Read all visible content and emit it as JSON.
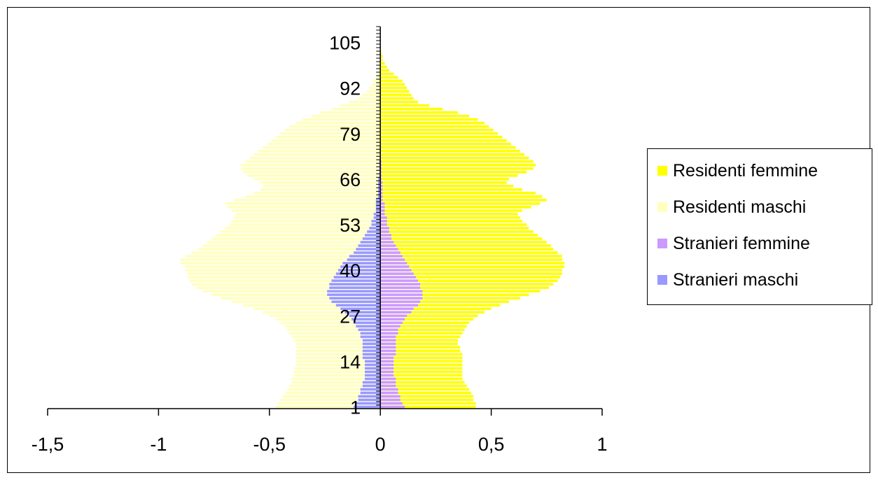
{
  "chart_data": {
    "type": "bar",
    "orientation": "horizontal",
    "stacking": "overlay",
    "xlim": [
      -1.5,
      1
    ],
    "x_ticks": [
      "-1,5",
      "-1",
      "-0,5",
      "0",
      "0,5",
      "1"
    ],
    "x_tick_values": [
      -1.5,
      -1,
      -0.5,
      0,
      0.5,
      1
    ],
    "ylim": [
      0,
      110
    ],
    "y_ticks": [
      "1",
      "14",
      "27",
      "40",
      "53",
      "66",
      "79",
      "92",
      "105"
    ],
    "y_tick_values": [
      1,
      14,
      27,
      40,
      53,
      66,
      79,
      92,
      105
    ],
    "grid": false,
    "legend_position": "right",
    "series": [
      {
        "name": "Residenti femmine",
        "color": "#ffff00",
        "values": [
          0.43,
          0.43,
          0.42,
          0.42,
          0.41,
          0.4,
          0.39,
          0.38,
          0.37,
          0.37,
          0.37,
          0.37,
          0.37,
          0.37,
          0.37,
          0.37,
          0.36,
          0.36,
          0.35,
          0.35,
          0.36,
          0.37,
          0.38,
          0.39,
          0.4,
          0.42,
          0.44,
          0.47,
          0.5,
          0.54,
          0.58,
          0.63,
          0.67,
          0.72,
          0.76,
          0.78,
          0.8,
          0.81,
          0.82,
          0.82,
          0.83,
          0.83,
          0.82,
          0.82,
          0.8,
          0.78,
          0.77,
          0.75,
          0.73,
          0.71,
          0.69,
          0.67,
          0.66,
          0.64,
          0.63,
          0.62,
          0.64,
          0.68,
          0.72,
          0.75,
          0.73,
          0.7,
          0.64,
          0.6,
          0.57,
          0.58,
          0.62,
          0.66,
          0.69,
          0.7,
          0.69,
          0.67,
          0.65,
          0.63,
          0.61,
          0.59,
          0.57,
          0.55,
          0.53,
          0.51,
          0.49,
          0.47,
          0.44,
          0.4,
          0.35,
          0.28,
          0.22,
          0.17,
          0.15,
          0.14,
          0.13,
          0.12,
          0.11,
          0.1,
          0.08,
          0.06,
          0.04,
          0.03,
          0.02,
          0.01,
          0.01,
          0.005,
          0.003,
          0.002,
          0.001,
          0.0
        ]
      },
      {
        "name": "Residenti maschi",
        "color": "#ffffc0",
        "values": [
          -0.47,
          -0.46,
          -0.45,
          -0.44,
          -0.43,
          -0.42,
          -0.41,
          -0.4,
          -0.4,
          -0.39,
          -0.39,
          -0.39,
          -0.38,
          -0.38,
          -0.38,
          -0.38,
          -0.38,
          -0.38,
          -0.38,
          -0.39,
          -0.4,
          -0.41,
          -0.42,
          -0.43,
          -0.45,
          -0.47,
          -0.5,
          -0.53,
          -0.57,
          -0.62,
          -0.67,
          -0.72,
          -0.76,
          -0.8,
          -0.83,
          -0.85,
          -0.86,
          -0.87,
          -0.87,
          -0.88,
          -0.88,
          -0.9,
          -0.9,
          -0.88,
          -0.85,
          -0.82,
          -0.8,
          -0.78,
          -0.76,
          -0.74,
          -0.72,
          -0.7,
          -0.68,
          -0.67,
          -0.66,
          -0.65,
          -0.67,
          -0.69,
          -0.7,
          -0.66,
          -0.61,
          -0.57,
          -0.54,
          -0.53,
          -0.54,
          -0.57,
          -0.6,
          -0.62,
          -0.63,
          -0.63,
          -0.61,
          -0.59,
          -0.57,
          -0.55,
          -0.53,
          -0.51,
          -0.49,
          -0.47,
          -0.45,
          -0.43,
          -0.41,
          -0.38,
          -0.35,
          -0.31,
          -0.27,
          -0.22,
          -0.18,
          -0.14,
          -0.1,
          -0.08,
          -0.06,
          -0.05,
          -0.04,
          -0.03,
          -0.02,
          -0.015,
          -0.01,
          -0.008,
          -0.005,
          -0.003,
          -0.002,
          -0.001,
          -0.001,
          -0.001,
          -0.0005,
          -0.0
        ]
      },
      {
        "name": "Stranieri femmine",
        "color": "#cc99ff",
        "values": [
          0.11,
          0.1,
          0.09,
          0.09,
          0.08,
          0.08,
          0.07,
          0.07,
          0.07,
          0.06,
          0.06,
          0.06,
          0.06,
          0.06,
          0.06,
          0.07,
          0.07,
          0.07,
          0.07,
          0.07,
          0.07,
          0.08,
          0.08,
          0.09,
          0.1,
          0.11,
          0.12,
          0.14,
          0.15,
          0.17,
          0.18,
          0.19,
          0.19,
          0.19,
          0.18,
          0.18,
          0.17,
          0.16,
          0.15,
          0.14,
          0.13,
          0.12,
          0.11,
          0.1,
          0.09,
          0.08,
          0.07,
          0.06,
          0.05,
          0.05,
          0.04,
          0.04,
          0.03,
          0.03,
          0.03,
          0.02,
          0.02,
          0.02,
          0.02,
          0.01,
          0.01,
          0.01,
          0.01,
          0.01,
          0.01,
          0.005,
          0.005,
          0.005,
          0.005,
          0.005,
          0.005,
          0.003,
          0.003,
          0.003,
          0.003,
          0.002,
          0.002,
          0.002,
          0.002,
          0.001,
          0.001,
          0.001,
          0.001,
          0.001,
          0.0,
          0.0,
          0.0,
          0.0,
          0.0,
          0.0,
          0.0,
          0.0,
          0.0,
          0.0,
          0.0,
          0.0,
          0.0,
          0.0,
          0.0,
          0.0,
          0.0,
          0.0,
          0.0,
          0.0,
          0.0,
          0.0
        ]
      },
      {
        "name": "Stranieri maschi",
        "color": "#9999ff",
        "values": [
          -0.12,
          -0.11,
          -0.1,
          -0.1,
          -0.09,
          -0.09,
          -0.08,
          -0.08,
          -0.07,
          -0.07,
          -0.07,
          -0.07,
          -0.07,
          -0.07,
          -0.08,
          -0.08,
          -0.08,
          -0.08,
          -0.08,
          -0.08,
          -0.09,
          -0.09,
          -0.1,
          -0.11,
          -0.12,
          -0.13,
          -0.14,
          -0.16,
          -0.18,
          -0.2,
          -0.22,
          -0.23,
          -0.24,
          -0.24,
          -0.23,
          -0.23,
          -0.22,
          -0.21,
          -0.2,
          -0.19,
          -0.18,
          -0.17,
          -0.15,
          -0.14,
          -0.12,
          -0.11,
          -0.1,
          -0.09,
          -0.08,
          -0.07,
          -0.06,
          -0.05,
          -0.04,
          -0.04,
          -0.03,
          -0.03,
          -0.02,
          -0.02,
          -0.02,
          -0.02,
          -0.01,
          -0.01,
          -0.01,
          -0.01,
          -0.01,
          -0.01,
          -0.005,
          -0.005,
          -0.005,
          -0.005,
          -0.005,
          -0.003,
          -0.003,
          -0.003,
          -0.003,
          -0.002,
          -0.002,
          -0.002,
          -0.002,
          -0.001,
          -0.001,
          -0.001,
          -0.001,
          -0.001,
          -0.0,
          -0.0,
          -0.0,
          -0.0,
          -0.0,
          -0.0,
          -0.0,
          -0.0,
          -0.0,
          -0.0,
          -0.0,
          -0.0,
          -0.0,
          -0.0,
          -0.0,
          -0.0,
          -0.0,
          -0.0,
          -0.0,
          -0.0,
          -0.0,
          -0.0
        ]
      }
    ]
  }
}
